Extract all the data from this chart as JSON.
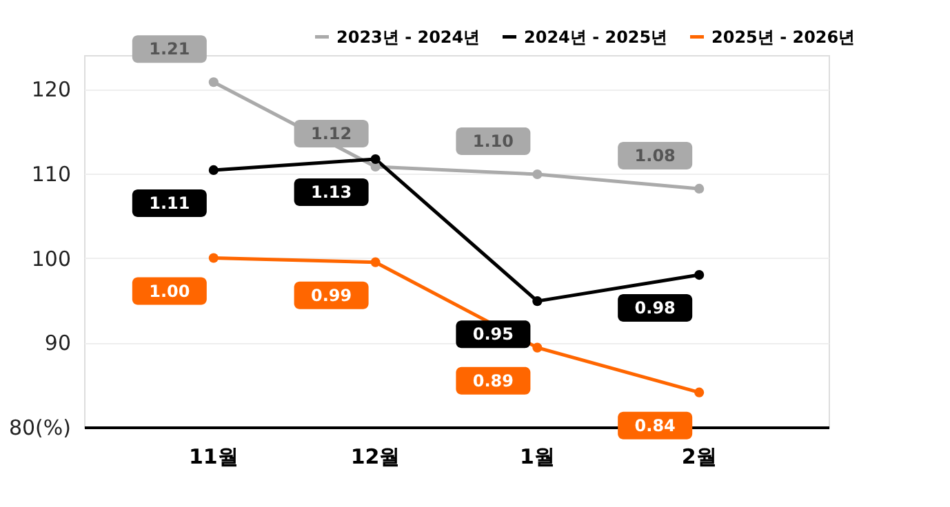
{
  "chart_data": {
    "type": "line",
    "categories": [
      "11월",
      "12월",
      "1월",
      "2월"
    ],
    "series": [
      {
        "name": "2023년 - 2024년",
        "color": "#aaaaaa",
        "values": [
          120.8,
          110.8,
          109.9,
          108.2
        ]
      },
      {
        "name": "2024년 - 2025년",
        "color": "#000000",
        "values": [
          110.4,
          111.7,
          94.9,
          98.0
        ]
      },
      {
        "name": "2025년 - 2026년",
        "color": "#ff6600",
        "values": [
          100.0,
          99.5,
          89.4,
          84.1
        ]
      }
    ],
    "annotations": [
      {
        "text": "1.21",
        "x": "11월",
        "y": 120.8
      },
      {
        "text": "1.12",
        "x": "12월",
        "y": 110.8
      },
      {
        "text": "1.10",
        "x": "1월",
        "y": 109.9
      },
      {
        "text": "1.08",
        "x": "2월",
        "y": 108.2
      },
      {
        "text": "1.11",
        "x": "11월",
        "y": 110.4
      },
      {
        "text": "1.13",
        "x": "12월",
        "y": 111.7
      },
      {
        "text": "0.95",
        "x": "1월",
        "y": 94.9
      },
      {
        "text": "0.98",
        "x": "2월",
        "y": 98.0
      },
      {
        "text": "1.00",
        "x": "11월",
        "y": 100.0
      },
      {
        "text": "0.99",
        "x": "12월",
        "y": 99.5
      },
      {
        "text": "0.89",
        "x": "1월",
        "y": 89.4
      },
      {
        "text": "0.84",
        "x": "2월",
        "y": 84.1
      }
    ],
    "ylim": [
      80,
      124
    ],
    "yticks": [
      {
        "value": 80,
        "label": "80(%)"
      },
      90,
      100,
      110,
      120
    ],
    "grid": "y",
    "legend": "top right",
    "marker": "circle",
    "line_style": "solid"
  }
}
